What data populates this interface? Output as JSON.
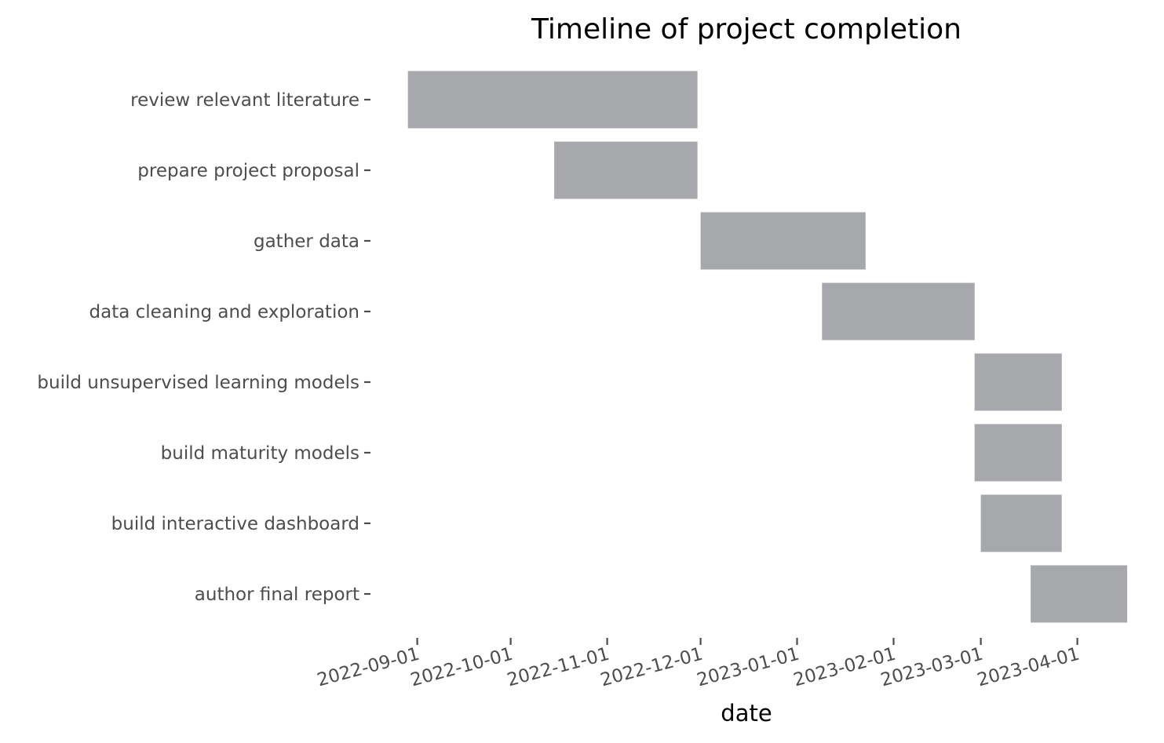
{
  "chart_data": {
    "type": "bar",
    "orientation": "horizontal-gantt",
    "title": "Timeline of project completion",
    "xlabel": "date",
    "ylabel": "",
    "xlim": [
      "2022-08-19",
      "2023-04-18"
    ],
    "bar_color": "#a7a8ab",
    "tick_color": "#4d4d4d",
    "grid": false,
    "legend": "none",
    "xticks": [
      "2022-09-01",
      "2022-10-01",
      "2022-11-01",
      "2022-12-01",
      "2023-01-01",
      "2023-02-01",
      "2023-03-01",
      "2023-04-01"
    ],
    "tasks": [
      {
        "name": "review relevant literature",
        "start": "2022-08-29",
        "end": "2022-11-30"
      },
      {
        "name": "prepare project proposal",
        "start": "2022-10-15",
        "end": "2022-11-30"
      },
      {
        "name": "gather data",
        "start": "2022-12-01",
        "end": "2023-01-23"
      },
      {
        "name": "data cleaning and exploration",
        "start": "2023-01-09",
        "end": "2023-02-27"
      },
      {
        "name": "build unsupervised learning models",
        "start": "2023-02-27",
        "end": "2023-03-27"
      },
      {
        "name": "build maturity models",
        "start": "2023-02-27",
        "end": "2023-03-27"
      },
      {
        "name": "build interactive dashboard",
        "start": "2023-03-01",
        "end": "2023-03-27"
      },
      {
        "name": "author final report",
        "start": "2023-03-17",
        "end": "2023-04-17"
      }
    ]
  }
}
